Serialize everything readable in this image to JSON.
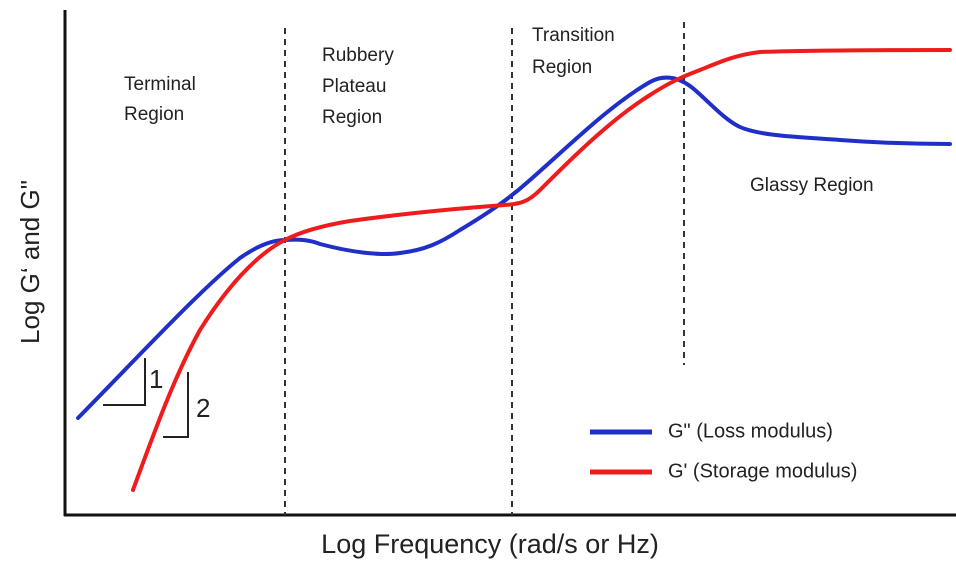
{
  "axes": {
    "y_label": "Log G‘ and G\"",
    "x_label": "Log Frequency (rad/s or Hz)"
  },
  "regions": [
    {
      "lines": [
        "Terminal",
        "Region"
      ]
    },
    {
      "lines": [
        "Rubbery",
        "Plateau",
        "Region"
      ]
    },
    {
      "lines": [
        "Transition",
        "Region"
      ]
    },
    {
      "lines": [
        "Glassy Region"
      ]
    }
  ],
  "slopes": [
    "1",
    "2"
  ],
  "legend": [
    "G\" (Loss modulus)",
    "G' (Storage modulus)"
  ]
}
